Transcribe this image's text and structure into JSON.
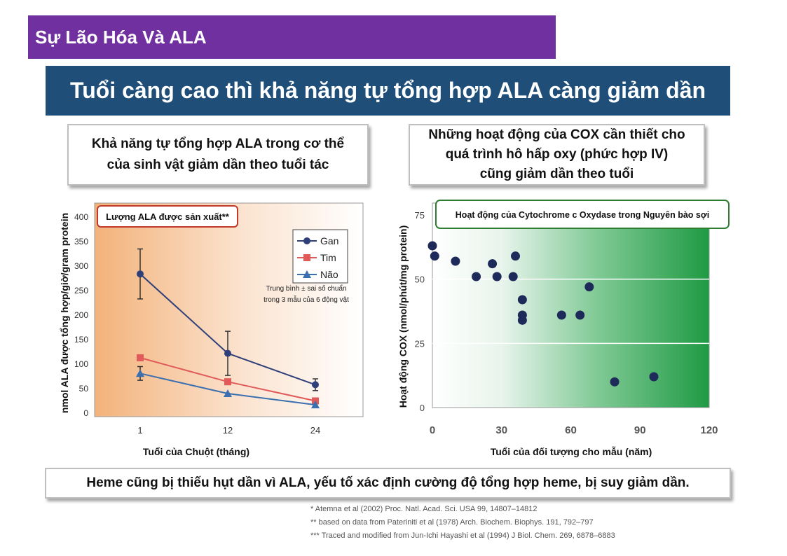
{
  "header": {
    "section_title": "Sự Lão Hóa Và ALA"
  },
  "banner": {
    "title": "Tuổi càng cao thì khả năng tự tổng hợp ALA càng giảm dần"
  },
  "left_caption": "Khả năng tự tổng hợp ALA trong cơ thể\ncủa sinh vật giảm dần theo tuổi tác",
  "right_caption": "Những hoạt động của COX cần thiết cho\nquá trình hô hấp oxy (phức hợp IV)\ncũng giảm dần theo tuổi",
  "bottom_note": "Heme cũng bị thiếu hụt dần vì ALA, yếu tố xác định cường độ tổng hợp heme, bị suy giảm dần.",
  "references": [
    "* Atemna et al (2002) Proc. Natl. Acad. Sci. USA 99, 14807–14812",
    "** based on data from Pateriniti et al (1978) Arch. Biochem. Biophys. 191, 792–797",
    "*** Traced and modified from Jun-Ichi Hayashi et al (1994) J Biol. Chem. 269, 6878–6883"
  ],
  "colors": {
    "purple": "#7030a0",
    "navy": "#1f4e79",
    "gan": "#2e3f7a",
    "tim": "#e05a5a",
    "nao": "#3a6fb0",
    "dot": "#1e2a5a",
    "orange_bg": "#f3b27a",
    "green_bg": "#2ea04a"
  },
  "chart_data": [
    {
      "type": "line",
      "title": "Lượng ALA được sản xuất**",
      "xlabel": "Tuổi của Chuột (tháng)",
      "ylabel": "nmol ALA được tổng hợp/giờ/gram protein",
      "categories": [
        "1",
        "12",
        "24"
      ],
      "ylim": [
        0,
        400
      ],
      "yticks": [
        0,
        50,
        100,
        150,
        200,
        250,
        300,
        350,
        400
      ],
      "annotation": "Trung bình ± sai số chuẩn\ntrong 3 mẫu của 6 động vật",
      "legend_position": "top-right",
      "series": [
        {
          "name": "Gan",
          "marker": "circle",
          "values": [
            284,
            122,
            58
          ],
          "errors": [
            51,
            45,
            12
          ]
        },
        {
          "name": "Tim",
          "marker": "square",
          "values": [
            113,
            64,
            25
          ],
          "errors": [
            0,
            0,
            0
          ]
        },
        {
          "name": "Não",
          "marker": "triangle",
          "values": [
            81,
            40,
            17
          ],
          "errors": [
            14,
            0,
            0
          ]
        }
      ]
    },
    {
      "type": "scatter",
      "title": "Hoạt động của Cytochrome c Oxydase trong Nguyên bào sợi",
      "xlabel": "Tuổi của đối tượng cho mẫu (năm)",
      "ylabel": "Hoạt động COX (nmol/phút/mg protein)",
      "xlim": [
        0,
        120
      ],
      "xticks": [
        0,
        30,
        60,
        90,
        120
      ],
      "ylim": [
        0,
        75
      ],
      "yticks": [
        0,
        25,
        50,
        75
      ],
      "grid": "horizontal",
      "points": [
        [
          0,
          63
        ],
        [
          1,
          59
        ],
        [
          10,
          57
        ],
        [
          19,
          51
        ],
        [
          26,
          56
        ],
        [
          28,
          51
        ],
        [
          35,
          51
        ],
        [
          36,
          59
        ],
        [
          39,
          42
        ],
        [
          39,
          36
        ],
        [
          39,
          34
        ],
        [
          56,
          36
        ],
        [
          64,
          36
        ],
        [
          68,
          47
        ],
        [
          79,
          10
        ],
        [
          96,
          12
        ]
      ]
    }
  ]
}
